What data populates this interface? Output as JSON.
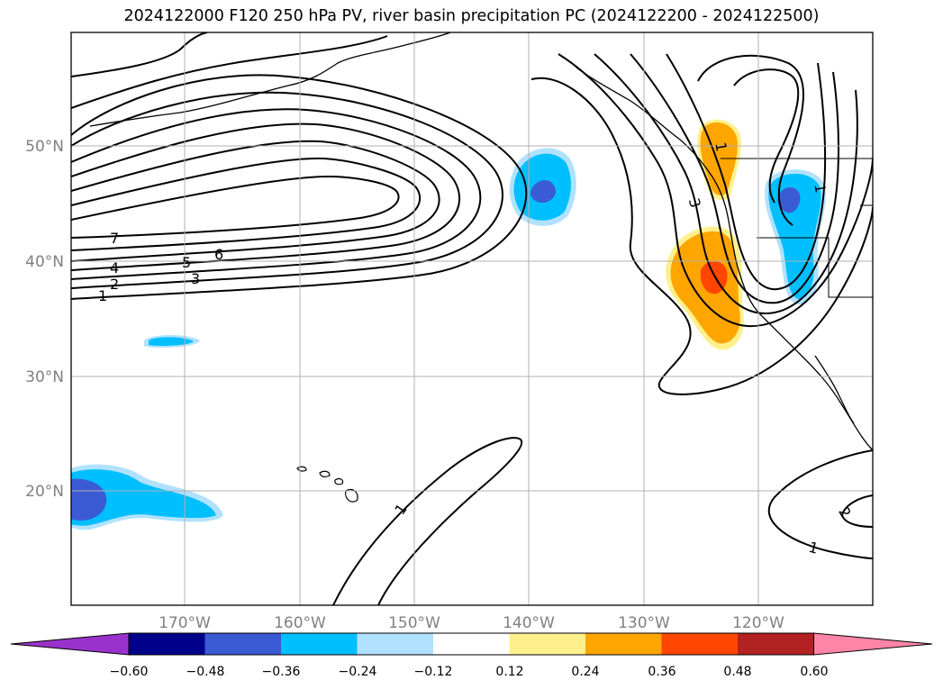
{
  "title": "2024122000 F120 250 hPa PV, river basin precipitation PC (2024122200 - 2024122500)",
  "latitude_labels": [
    "50°N",
    "40°N",
    "30°N",
    "20°N"
  ],
  "longitude_labels": [
    "170°W",
    "160°W",
    "150°W",
    "140°W",
    "130°W",
    "120°W"
  ],
  "pv_contour_labels": [
    "7",
    "6",
    "5",
    "4",
    "3",
    "2",
    "1",
    "1",
    "1",
    "3",
    "2",
    "1",
    "1"
  ],
  "colorbar": {
    "tick_labels": [
      "−0.60",
      "−0.48",
      "−0.36",
      "−0.24",
      "−0.12",
      "0.12",
      "0.24",
      "0.36",
      "0.48",
      "0.60"
    ],
    "colors": [
      "#9932cc",
      "#00008b",
      "#3b5bd5",
      "#00bfff",
      "#b0e2ff",
      "#ffffff",
      "#fff08c",
      "#ffa500",
      "#ff4500",
      "#b22222",
      "#ff85a8"
    ]
  },
  "map_extent": {
    "lon_min": -180,
    "lon_max": -110,
    "lat_min": 10,
    "lat_max": 60
  },
  "gridlines": true
}
